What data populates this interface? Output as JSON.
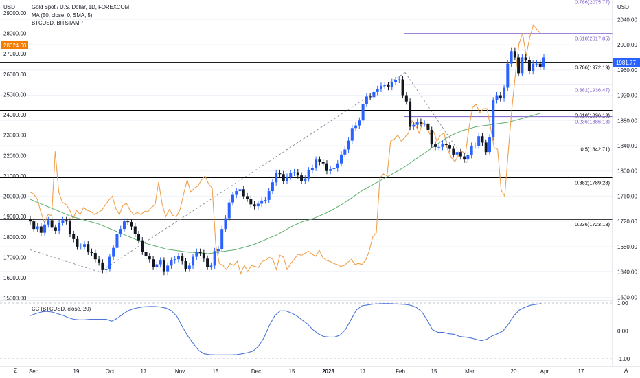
{
  "header": {
    "title": "Gold Spot / U.S. Dollar, 1D, FOREXCOM",
    "ma_label": "MA (50, close, 0, SMA, 5)",
    "overlay_label": "BTCUSD, BITSTAMP",
    "cc_label": "CC (BTCUSD, close, 20)",
    "left_currency": "USD",
    "right_currency": "USD",
    "z_left": "Z",
    "z_right": "A",
    "btc_price_badge": "28024.00",
    "gold_price_badge": "1981.77"
  },
  "colors": {
    "candle_up": "#2962ff",
    "candle_down": "#131722",
    "btc_line": "#f0a04b",
    "ma_line": "#5cae6a",
    "cc_line": "#4a74d8",
    "fib_level": "#000000",
    "fib_purple": "#7b5cc8",
    "btc_badge": "#f57c00",
    "gold_badge": "#2962ff"
  },
  "chart_data": {
    "type": "candlestick",
    "title": "Gold Spot / U.S. Dollar, 1D, FOREXCOM",
    "x_ticks": [
      "Sep",
      "19",
      "Oct",
      "17",
      "Nov",
      "15",
      "Dec",
      "15",
      "2023",
      "17",
      "Feb",
      "15",
      "Mar",
      "20",
      "Apr",
      "17"
    ],
    "right_axis_ticks": [
      "2040.00",
      "2000.00",
      "1960.00",
      "1920.00",
      "1880.00",
      "1840.00",
      "1800.00",
      "1760.00",
      "1720.00",
      "1680.00",
      "1640.00",
      "1600.00"
    ],
    "left_axis_ticks": [
      "29000.00",
      "28000.00",
      "27000.00",
      "26000.00",
      "25000.00",
      "24000.00",
      "23000.00",
      "22000.00",
      "21000.00",
      "20000.00",
      "19000.00",
      "18000.00",
      "17000.00",
      "16000.00",
      "15000.00"
    ],
    "right_axis_range": [
      1596,
      2060
    ],
    "left_axis_range": [
      14920,
      29300
    ],
    "gold_closes": [
      1720,
      1708,
      1712,
      1702,
      1715,
      1722,
      1710,
      1705,
      1718,
      1722,
      1720,
      1700,
      1692,
      1680,
      1680,
      1684,
      1672,
      1670,
      1660,
      1655,
      1643,
      1645,
      1664,
      1678,
      1700,
      1708,
      1720,
      1719,
      1712,
      1700,
      1690,
      1672,
      1665,
      1660,
      1648,
      1652,
      1658,
      1640,
      1650,
      1658,
      1660,
      1665,
      1657,
      1645,
      1650,
      1664,
      1672,
      1670,
      1661,
      1648,
      1650,
      1673,
      1676,
      1708,
      1725,
      1750,
      1762,
      1768,
      1771,
      1760,
      1756,
      1747,
      1744,
      1748,
      1753,
      1754,
      1768,
      1782,
      1797,
      1795,
      1784,
      1791,
      1797,
      1798,
      1793,
      1784,
      1788,
      1801,
      1805,
      1818,
      1814,
      1812,
      1800,
      1803,
      1804,
      1812,
      1826,
      1834,
      1848,
      1868,
      1872,
      1880,
      1906,
      1918,
      1917,
      1925,
      1930,
      1935,
      1936,
      1933,
      1941,
      1944,
      1945,
      1920,
      1910,
      1870,
      1873,
      1878,
      1875,
      1875,
      1865,
      1842,
      1838,
      1838,
      1843,
      1841,
      1835,
      1826,
      1830,
      1823,
      1818,
      1825,
      1840,
      1840,
      1855,
      1845,
      1830,
      1853,
      1912,
      1920,
      1915,
      1932,
      1970,
      1990,
      1980,
      1955,
      1980,
      1976,
      1958,
      1970,
      1970,
      1965,
      1980
    ],
    "btc_closes": [
      20200,
      20100,
      19850,
      19200,
      18700,
      19100,
      19050,
      22200,
      20200,
      19700,
      19600,
      19350,
      18900,
      19300,
      19100,
      19450,
      19300,
      19250,
      19100,
      19200,
      19300,
      19550,
      19800,
      20000,
      19400,
      19100,
      19550,
      19650,
      19300,
      19100,
      19200,
      19100,
      19250,
      19250,
      19450,
      19600,
      20700,
      19600,
      19000,
      19350,
      19050,
      19000,
      19350,
      20100,
      20800,
      20200,
      20400,
      20500,
      20800,
      21000,
      20600,
      20400,
      17600,
      16700,
      16600,
      16400,
      16700,
      16600,
      16800,
      16200,
      16600,
      16300,
      16600,
      16550,
      16500,
      16800,
      16850,
      17000,
      16900,
      16400,
      17100,
      17000,
      16400,
      16700,
      16900,
      17150,
      17100,
      17200,
      17300,
      17150,
      17050,
      17350,
      17000,
      16850,
      16800,
      16700,
      16650,
      16550,
      16600,
      16750,
      16900,
      16650,
      16700,
      16650,
      16850,
      17300,
      18000,
      18200,
      20900,
      21100,
      21000,
      22700,
      22800,
      23000,
      22700,
      22900,
      23100,
      23700,
      23500,
      23100,
      23600,
      23500,
      23050,
      23200,
      22700,
      23000,
      23100,
      22300,
      21900,
      21700,
      22000,
      22200,
      22100,
      23400,
      24400,
      24500,
      24100,
      24300,
      24300,
      23400,
      22400,
      22300,
      20300,
      20000,
      22200,
      24300,
      26000,
      27500,
      28000,
      26900,
      27800,
      28400,
      28200,
      28000
    ],
    "ma50": [
      1755,
      1752,
      1749,
      1746,
      1743,
      1740,
      1737,
      1734,
      1731,
      1728,
      1726,
      1724,
      1722,
      1720,
      1718,
      1716,
      1713,
      1710,
      1707,
      1704,
      1701,
      1698,
      1695,
      1692,
      1689,
      1686,
      1684,
      1682,
      1680,
      1678,
      1676,
      1675,
      1674,
      1673,
      1672,
      1671,
      1671,
      1670,
      1670,
      1669,
      1670,
      1671,
      1672,
      1673,
      1674,
      1675,
      1677,
      1679,
      1681,
      1683,
      1686,
      1689,
      1692,
      1695,
      1698,
      1702,
      1706,
      1710,
      1714,
      1717,
      1720,
      1722,
      1724,
      1727,
      1730,
      1733,
      1737,
      1741,
      1745,
      1749,
      1754,
      1759,
      1764,
      1769,
      1773,
      1777,
      1781,
      1785,
      1789,
      1793,
      1797,
      1801,
      1805,
      1810,
      1815,
      1820,
      1825,
      1830,
      1835,
      1840,
      1845,
      1850,
      1854,
      1858,
      1861,
      1864,
      1866,
      1868,
      1870,
      1871,
      1872,
      1873,
      1874,
      1875,
      1876,
      1877,
      1879,
      1881,
      1883,
      1885,
      1887,
      1889,
      1891
    ],
    "ma50_start_index": 0,
    "cc_values": [
      0.55,
      0.62,
      0.68,
      0.7,
      0.68,
      0.62,
      0.56,
      0.48,
      0.42,
      0.4,
      0.4,
      0.42,
      0.42,
      0.42,
      0.42,
      0.35,
      0.45,
      0.6,
      0.72,
      0.8,
      0.84,
      0.87,
      0.88,
      0.88,
      0.86,
      0.82,
      0.72,
      0.52,
      0.15,
      -0.18,
      -0.45,
      -0.7,
      -0.82,
      -0.85,
      -0.86,
      -0.86,
      -0.86,
      -0.86,
      -0.85,
      -0.82,
      -0.78,
      -0.72,
      -0.55,
      -0.25,
      0.2,
      0.55,
      0.72,
      0.72,
      0.65,
      0.55,
      0.4,
      0.25,
      0.05,
      -0.1,
      -0.2,
      -0.22,
      -0.22,
      -0.15,
      0.05,
      0.4,
      0.75,
      0.9,
      0.93,
      0.96,
      0.97,
      0.98,
      0.98,
      0.97,
      0.96,
      0.95,
      0.92,
      0.85,
      0.7,
      0.4,
      0.05,
      -0.05,
      -0.05,
      -0.1,
      -0.12,
      -0.2,
      -0.22,
      -0.25,
      -0.3,
      -0.35,
      -0.3,
      -0.18,
      -0.1,
      0.0,
      0.25,
      0.55,
      0.75,
      0.85,
      0.92,
      0.95,
      0.98
    ],
    "cc_ticks": [
      "1.00",
      "0.00",
      "-1.00"
    ],
    "fibs": [
      {
        "label": "0.786(2075.77)",
        "value": 2075.77,
        "color": "purple"
      },
      {
        "label": "0.618(2017.85)",
        "value": 2017.85,
        "color": "purple"
      },
      {
        "label": "0.786(1972.19)",
        "value": 1972.19,
        "color": "black"
      },
      {
        "label": "0.382(1936.47)",
        "value": 1936.47,
        "color": "purple"
      },
      {
        "label": "0.618(1896.13)",
        "value": 1896.13,
        "color": "black"
      },
      {
        "label": "0.236(1886.13)",
        "value": 1886.13,
        "color": "purple"
      },
      {
        "label": "0.5(1842.71)",
        "value": 1842.71,
        "color": "black"
      },
      {
        "label": "0.382(1789.28)",
        "value": 1789.28,
        "color": "black"
      },
      {
        "label": "0.236(1723.18)",
        "value": 1723.18,
        "color": "black"
      }
    ]
  }
}
